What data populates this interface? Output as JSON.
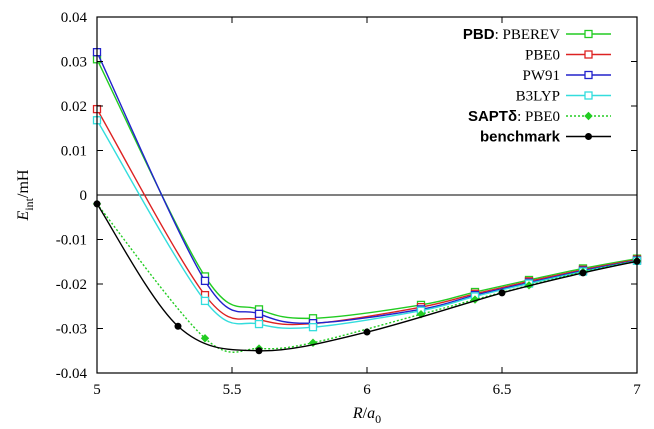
{
  "chart_data": {
    "type": "line",
    "xlabel": {
      "main": "R/a",
      "sub": "0"
    },
    "ylabel": {
      "main": "E",
      "sub": "int",
      "suffix": "/mH"
    },
    "xlim": [
      5,
      7
    ],
    "ylim": [
      -0.04,
      0.04
    ],
    "x_ticks": [
      "5",
      "5.5",
      "6",
      "6.5",
      "7"
    ],
    "x_tick_values": [
      5,
      5.5,
      6,
      6.5,
      7
    ],
    "y_ticks": [
      "0.04",
      "0.03",
      "0.02",
      "0.01",
      "0",
      "-0.01",
      "-0.02",
      "-0.03",
      "-0.04"
    ],
    "y_tick_values": [
      0.04,
      0.03,
      0.02,
      0.01,
      0,
      -0.01,
      -0.02,
      -0.03,
      -0.04
    ],
    "zero_line": true,
    "legend_position": "top-right",
    "series": [
      {
        "name": "PBD: PBEREV",
        "legend_bold": "PBD",
        "legend_rest": ": PBEREV",
        "color": "#22cc22",
        "marker": "open-square",
        "dash": "solid",
        "points": [
          [
            5.0,
            0.0305
          ],
          [
            5.4,
            -0.0183
          ],
          [
            5.6,
            -0.0257
          ],
          [
            5.8,
            -0.0277
          ],
          [
            6.2,
            -0.0247
          ],
          [
            6.4,
            -0.0218
          ],
          [
            6.6,
            -0.0191
          ],
          [
            6.8,
            -0.0165
          ],
          [
            7.0,
            -0.0143
          ]
        ]
      },
      {
        "name": "PBE0",
        "legend_bold": "",
        "legend_rest": "PBE0",
        "color": "#dd2222",
        "marker": "open-square",
        "dash": "solid",
        "points": [
          [
            5.0,
            0.0193
          ],
          [
            5.4,
            -0.0225
          ],
          [
            5.6,
            -0.028
          ],
          [
            5.8,
            -0.0289
          ],
          [
            6.2,
            -0.0252
          ],
          [
            6.4,
            -0.0222
          ],
          [
            6.6,
            -0.0194
          ],
          [
            6.8,
            -0.0168
          ],
          [
            7.0,
            -0.0145
          ]
        ]
      },
      {
        "name": "PW91",
        "legend_bold": "",
        "legend_rest": "PW91",
        "color": "#2222cc",
        "marker": "open-square",
        "dash": "solid",
        "points": [
          [
            5.0,
            0.0321
          ],
          [
            5.4,
            -0.0193
          ],
          [
            5.6,
            -0.0267
          ],
          [
            5.8,
            -0.0288
          ],
          [
            6.2,
            -0.0257
          ],
          [
            6.4,
            -0.0225
          ],
          [
            6.6,
            -0.0197
          ],
          [
            6.8,
            -0.017
          ],
          [
            7.0,
            -0.0147
          ]
        ]
      },
      {
        "name": "B3LYP",
        "legend_bold": "",
        "legend_rest": "B3LYP",
        "color": "#33dddd",
        "marker": "open-square",
        "dash": "solid",
        "points": [
          [
            5.0,
            0.0168
          ],
          [
            5.4,
            -0.0238
          ],
          [
            5.6,
            -0.029
          ],
          [
            5.8,
            -0.0297
          ],
          [
            6.2,
            -0.026
          ],
          [
            6.4,
            -0.0228
          ],
          [
            6.6,
            -0.0199
          ],
          [
            6.8,
            -0.0172
          ],
          [
            7.0,
            -0.0148
          ]
        ]
      },
      {
        "name": "SAPTδ: PBE0",
        "legend_bold": "SAPTδ",
        "legend_rest": ": PBE0",
        "color": "#22cc22",
        "marker": "diamond",
        "dash": "dotted",
        "points": [
          [
            5.0,
            -0.002
          ],
          [
            5.4,
            -0.0322
          ],
          [
            5.6,
            -0.0345
          ],
          [
            5.8,
            -0.0332
          ],
          [
            6.2,
            -0.0268
          ],
          [
            6.4,
            -0.0235
          ],
          [
            6.6,
            -0.0203
          ],
          [
            6.8,
            -0.0173
          ],
          [
            7.0,
            -0.0148
          ]
        ]
      },
      {
        "name": "benchmark",
        "legend_bold": "benchmark",
        "legend_rest": "",
        "color": "#000000",
        "marker": "filled-circle",
        "dash": "solid",
        "points": [
          [
            5.0,
            -0.002
          ],
          [
            5.3,
            -0.0295
          ],
          [
            5.6,
            -0.035
          ],
          [
            6.0,
            -0.0308
          ],
          [
            6.5,
            -0.022
          ],
          [
            6.8,
            -0.0175
          ],
          [
            7.0,
            -0.0149
          ]
        ]
      }
    ]
  }
}
